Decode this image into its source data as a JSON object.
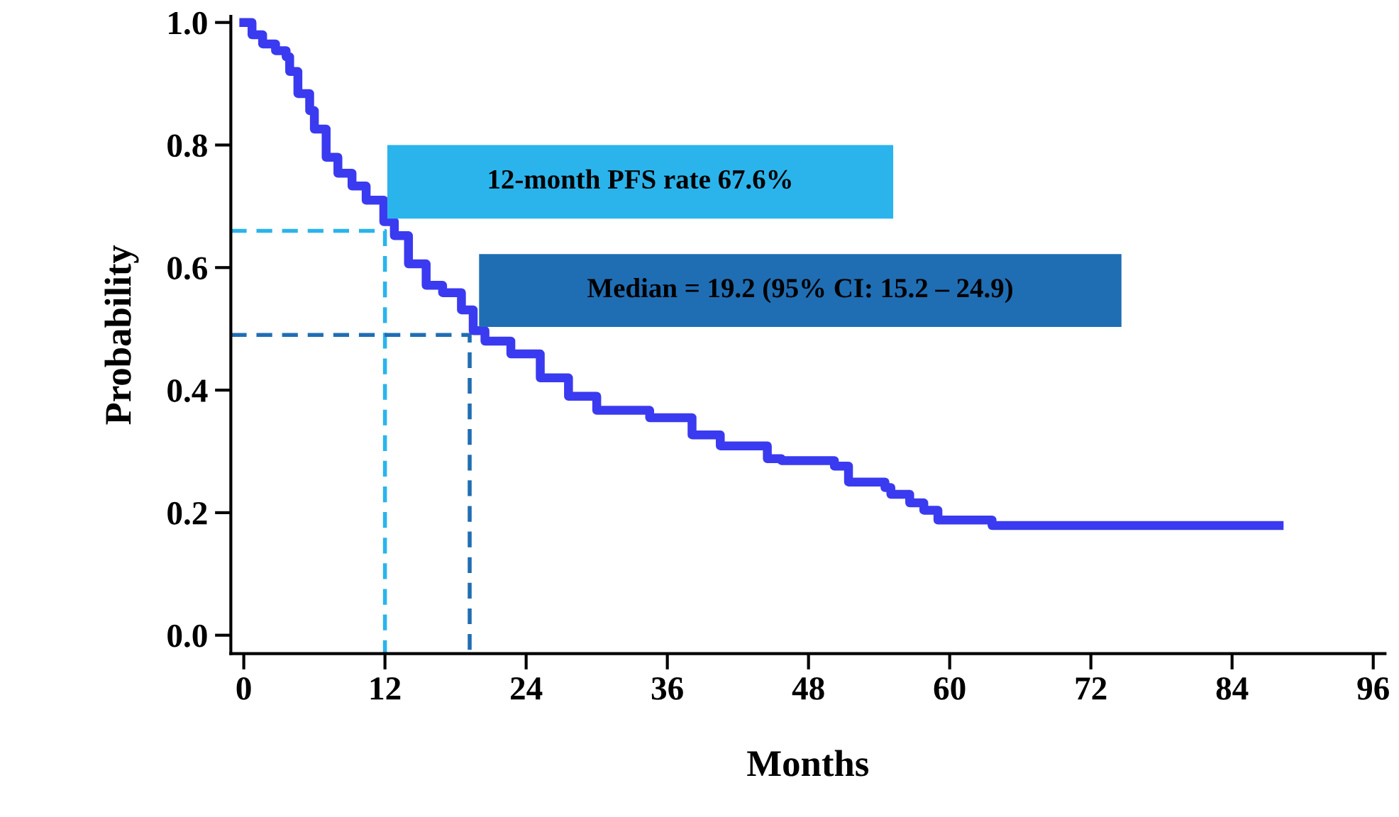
{
  "chart_data": {
    "type": "step",
    "xlabel": "Months",
    "ylabel": "Probability",
    "xlim": [
      -1.1,
      97
    ],
    "ylim": [
      -0.03,
      1.01
    ],
    "xticks": [
      0,
      12,
      24,
      36,
      48,
      60,
      72,
      84,
      96
    ],
    "yticks": [
      {
        "value": 0,
        "label": "0.0"
      },
      {
        "value": 0.2,
        "label": "0.2"
      },
      {
        "value": 0.4,
        "label": "0.4"
      },
      {
        "value": 0.6,
        "label": "0.6"
      },
      {
        "value": 0.8,
        "label": "0.8"
      },
      {
        "value": 1,
        "label": "1.0"
      }
    ],
    "grid": false,
    "legend": false,
    "series": [
      {
        "color": "#3a3af0",
        "x": [
          0,
          0.7,
          1.6,
          2.7,
          3.6,
          3.9,
          4.6,
          5.6,
          6.0,
          7.0,
          8.0,
          9.2,
          10.4,
          11.9,
          12.8,
          14.0,
          15.5,
          16.9,
          18.5,
          19.5,
          20.5,
          22.7,
          25.2,
          27.6,
          30.0,
          34.5,
          38.1,
          40.5,
          44.5,
          45.7,
          50.2,
          51.4,
          54.5,
          55.0,
          56.6,
          57.8,
          59.0,
          63.6,
          88.0
        ],
        "values": [
          1.0,
          0.98,
          0.965,
          0.954,
          0.944,
          0.92,
          0.884,
          0.856,
          0.826,
          0.78,
          0.754,
          0.733,
          0.71,
          0.675,
          0.652,
          0.606,
          0.571,
          0.559,
          0.531,
          0.497,
          0.48,
          0.459,
          0.42,
          0.39,
          0.367,
          0.355,
          0.327,
          0.309,
          0.288,
          0.285,
          0.276,
          0.25,
          0.241,
          0.23,
          0.216,
          0.204,
          0.188,
          0.179,
          0.179
        ]
      },
      {
        "type": "line",
        "line_style": "dashed",
        "color": "#2bb4ec",
        "x": [
          -1.1,
          12,
          12
        ],
        "values": [
          0.66,
          0.66,
          -0.03
        ]
      },
      {
        "type": "line",
        "line_style": "dashed",
        "color": "#1f6eb4",
        "x": [
          -1.1,
          19.2,
          19.2
        ],
        "values": [
          0.49,
          0.49,
          -0.03
        ]
      }
    ],
    "annotations": [
      "12-month PFS rate 67.6%",
      "Median = 19.2 (95% CI: 15.2 – 24.9)"
    ]
  }
}
